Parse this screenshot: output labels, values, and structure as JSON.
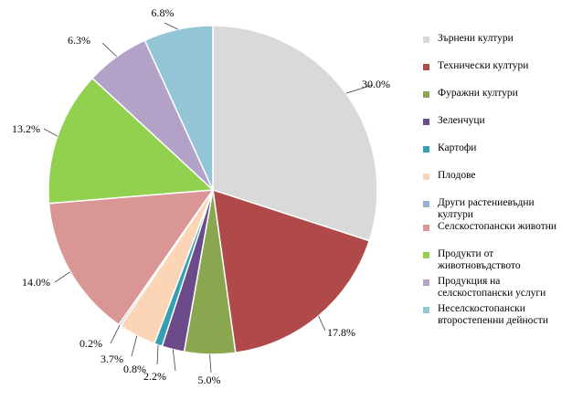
{
  "chart_data": {
    "type": "pie",
    "start_angle_deg": 0,
    "direction": "clockwise",
    "slices": [
      {
        "label": "Зърнени култури",
        "value": 30.0,
        "value_label": "30.0%",
        "color": "#d9d9d9"
      },
      {
        "label": "Технически култури",
        "value": 17.8,
        "value_label": "17.8%",
        "color": "#b04a4a"
      },
      {
        "label": "Фуражни култури",
        "value": 5.0,
        "value_label": "5.0%",
        "color": "#8aa64f"
      },
      {
        "label": "Зеленчуци",
        "value": 2.2,
        "value_label": "2.2%",
        "color": "#6b4b8a"
      },
      {
        "label": "Картофи",
        "value": 0.8,
        "value_label": "0.8%",
        "color": "#35a0b0"
      },
      {
        "label": "Плодове",
        "value": 3.7,
        "value_label": "3.7%",
        "color": "#fbd5b5"
      },
      {
        "label": "Други растениевъдни култури",
        "value": 0.2,
        "value_label": "0.2%",
        "color": "#95b3d7"
      },
      {
        "label": "Селскостопански животни",
        "value": 14.0,
        "value_label": "14.0%",
        "color": "#d99694"
      },
      {
        "label": "Продукти от животновъдството",
        "value": 13.2,
        "value_label": "13.2%",
        "color": "#92d050"
      },
      {
        "label": "Продукция на селскостопански услуги",
        "value": 6.3,
        "value_label": "6.3%",
        "color": "#b3a2c7"
      },
      {
        "label": "Неселскостопански второстепенни дейности",
        "value": 6.8,
        "value_label": "6.8%",
        "color": "#93c5d7"
      }
    ],
    "legend": {
      "position": "right",
      "items": [
        {
          "text": "Зърнени култури",
          "color": "#d9d9d9"
        },
        {
          "text": "Технически култури",
          "color": "#b04a4a"
        },
        {
          "text": "Фуражни култури",
          "color": "#8aa64f"
        },
        {
          "text": "Зеленчуци",
          "color": "#6b4b8a"
        },
        {
          "text": "Картофи",
          "color": "#35a0b0"
        },
        {
          "text": "Плодове",
          "color": "#fbd5b5"
        },
        {
          "text": "Други растениевъдни култури",
          "color": "#95b3d7"
        },
        {
          "text": "Селскостопански животни",
          "color": "#d99694"
        },
        {
          "text": "Продукти от животновъдството",
          "color": "#92d050"
        },
        {
          "text": "Продукция на селскостопански услуги",
          "color": "#b3a2c7"
        },
        {
          "text": "Неселскостопански второстепенни дейности",
          "color": "#93c5d7"
        }
      ]
    }
  }
}
